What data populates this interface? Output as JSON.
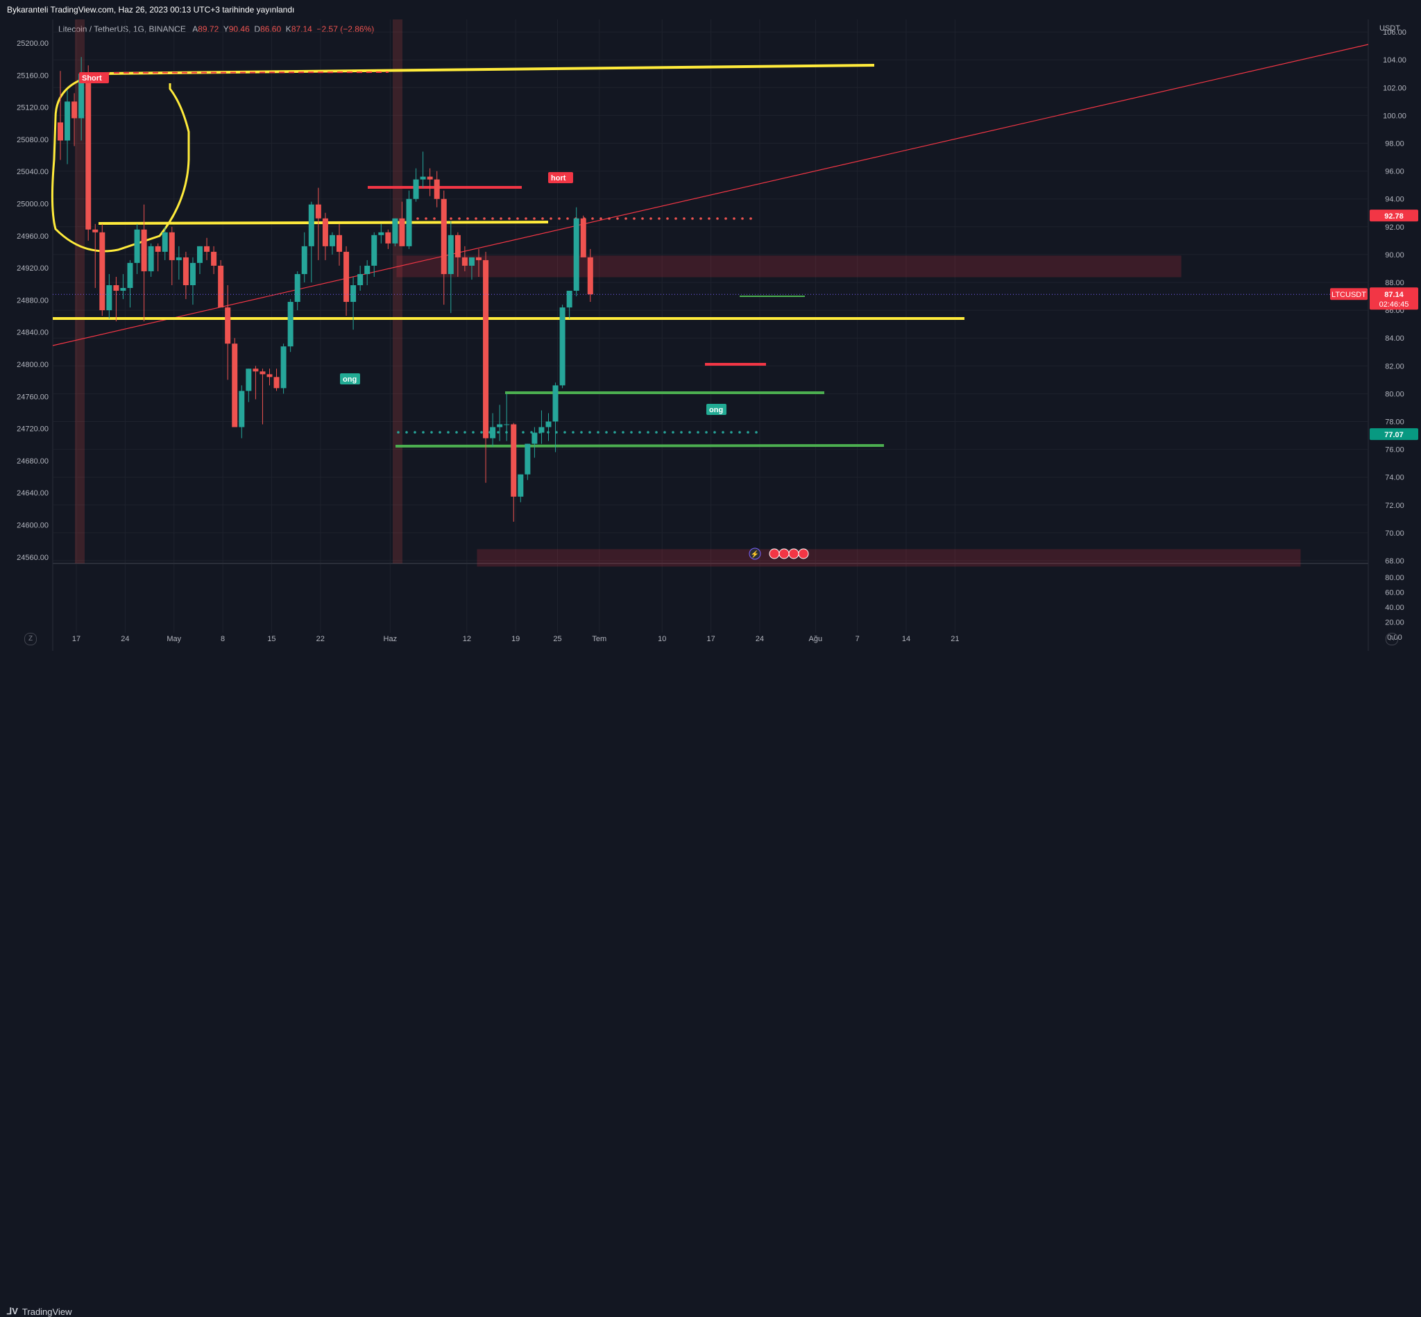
{
  "header": {
    "published": "Bykaranteli TradingView.com, Haz 26, 2023 00:13 UTC+3 tarihinde yayınlandı"
  },
  "symbol": {
    "name": "Litecoin / TetherUS, 1G, BINANCE",
    "o_label": "A",
    "o": "89.72",
    "h_label": "Y",
    "h": "90.46",
    "l_label": "D",
    "l": "86.60",
    "c_label": "K",
    "c": "87.14",
    "change": "−2.57 (−2.86%)"
  },
  "footer": {
    "brand": "TradingView",
    "left_btn": "Z",
    "right_btn": "A"
  },
  "price_tags": {
    "currency": "USDT",
    "red_level": "92.78",
    "ticker": "LTCUSDT",
    "last": "87.14",
    "countdown": "02:46:45",
    "green_level": "77.07"
  },
  "signals": {
    "short1": "Short",
    "short2": "hort",
    "long1": "ong",
    "long2": "ong"
  },
  "colors": {
    "up": "#26a69a",
    "down": "#ef5350",
    "yellow": "#ffeb3b",
    "green_line": "#4caf50",
    "red_line": "#f23645",
    "bg": "#131722",
    "grid": "#2a2e39"
  },
  "chart_data": {
    "type": "candlestick",
    "title": "Litecoin / TetherUS, 1G, BINANCE",
    "right_axis_ticks": [
      "106.00",
      "104.00",
      "102.00",
      "100.00",
      "98.00",
      "96.00",
      "94.00",
      "92.00",
      "90.00",
      "88.00",
      "86.00",
      "84.00",
      "82.00",
      "80.00",
      "78.00",
      "76.00",
      "74.00",
      "72.00",
      "70.00",
      "68.00"
    ],
    "left_axis_ticks": [
      "25200.00",
      "25160.00",
      "25120.00",
      "25080.00",
      "25040.00",
      "25000.00",
      "24960.00",
      "24920.00",
      "24880.00",
      "24840.00",
      "24800.00",
      "24760.00",
      "24720.00",
      "24680.00",
      "24640.00",
      "24600.00",
      "24560.00"
    ],
    "lower_axis_ticks": [
      "80.00",
      "60.00",
      "40.00",
      "20.00",
      "0.00"
    ],
    "x_ticks": [
      {
        "label": "17",
        "day": 1
      },
      {
        "label": "24",
        "day": 8
      },
      {
        "label": "May",
        "day": 15
      },
      {
        "label": "8",
        "day": 22
      },
      {
        "label": "15",
        "day": 29
      },
      {
        "label": "22",
        "day": 36
      },
      {
        "label": "Haz",
        "day": 46
      },
      {
        "label": "12",
        "day": 57
      },
      {
        "label": "19",
        "day": 64
      },
      {
        "label": "25",
        "day": 70
      },
      {
        "label": "Tem",
        "day": 76
      },
      {
        "label": "10",
        "day": 85
      },
      {
        "label": "17",
        "day": 92
      },
      {
        "label": "24",
        "day": 99
      },
      {
        "label": "Ağu",
        "day": 107
      },
      {
        "label": "7",
        "day": 113
      },
      {
        "label": "14",
        "day": 120
      },
      {
        "label": "21",
        "day": 127
      }
    ],
    "candles_ohlc": [
      [
        99.5,
        103.2,
        96.8,
        98.2
      ],
      [
        98.2,
        101.8,
        96.5,
        101.0
      ],
      [
        101.0,
        101.6,
        97.8,
        99.8
      ],
      [
        99.8,
        104.2,
        98.2,
        103.0
      ],
      [
        103.0,
        103.6,
        91.0,
        91.8
      ],
      [
        91.8,
        92.2,
        87.6,
        91.6
      ],
      [
        91.6,
        92.2,
        85.6,
        86.0
      ],
      [
        86.0,
        88.6,
        85.4,
        87.8
      ],
      [
        87.8,
        88.4,
        85.2,
        87.4
      ],
      [
        87.4,
        88.6,
        86.8,
        87.6
      ],
      [
        87.6,
        89.6,
        86.2,
        89.4
      ],
      [
        89.4,
        92.2,
        88.6,
        91.8
      ],
      [
        91.8,
        93.6,
        85.2,
        88.8
      ],
      [
        88.8,
        90.8,
        88.4,
        90.6
      ],
      [
        90.6,
        90.8,
        88.8,
        90.2
      ],
      [
        90.2,
        92.0,
        89.6,
        91.6
      ],
      [
        91.6,
        92.0,
        87.8,
        89.6
      ],
      [
        89.6,
        90.6,
        88.2,
        89.8
      ],
      [
        89.8,
        90.2,
        86.8,
        87.8
      ],
      [
        87.8,
        89.8,
        86.4,
        89.4
      ],
      [
        89.4,
        90.6,
        88.6,
        90.6
      ],
      [
        90.6,
        91.2,
        89.6,
        90.2
      ],
      [
        90.2,
        90.6,
        88.6,
        89.2
      ],
      [
        89.2,
        89.6,
        86.8,
        86.2
      ],
      [
        86.2,
        87.8,
        81.0,
        83.6
      ],
      [
        83.6,
        84.0,
        77.8,
        77.6
      ],
      [
        77.6,
        80.6,
        76.8,
        80.2
      ],
      [
        80.2,
        81.8,
        79.4,
        81.8
      ],
      [
        81.8,
        82.0,
        79.6,
        81.6
      ],
      [
        81.6,
        81.8,
        77.8,
        81.4
      ],
      [
        81.4,
        81.8,
        80.6,
        81.2
      ],
      [
        81.2,
        81.8,
        80.2,
        80.4
      ],
      [
        80.4,
        83.6,
        80.0,
        83.4
      ],
      [
        83.4,
        86.8,
        83.0,
        86.6
      ],
      [
        86.6,
        88.8,
        86.0,
        88.6
      ],
      [
        88.6,
        91.6,
        88.0,
        90.6
      ],
      [
        90.6,
        93.8,
        88.0,
        93.6
      ],
      [
        93.6,
        94.8,
        89.6,
        92.6
      ],
      [
        92.6,
        93.0,
        89.6,
        90.6
      ],
      [
        90.6,
        91.6,
        90.0,
        91.4
      ],
      [
        91.4,
        92.2,
        89.2,
        90.2
      ],
      [
        90.2,
        90.6,
        85.6,
        86.6
      ],
      [
        86.6,
        88.4,
        84.6,
        87.8
      ],
      [
        87.8,
        89.2,
        87.4,
        88.6
      ],
      [
        88.6,
        89.6,
        87.8,
        89.2
      ],
      [
        89.2,
        91.6,
        88.4,
        91.4
      ],
      [
        91.4,
        92.2,
        90.8,
        91.6
      ],
      [
        91.6,
        91.8,
        90.4,
        90.8
      ],
      [
        90.8,
        92.6,
        90.6,
        92.6
      ],
      [
        92.6,
        93.8,
        90.8,
        90.6
      ],
      [
        90.6,
        94.6,
        90.4,
        94.0
      ],
      [
        94.0,
        96.2,
        93.8,
        95.4
      ],
      [
        95.4,
        97.4,
        94.8,
        95.6
      ],
      [
        95.6,
        96.2,
        94.2,
        95.4
      ],
      [
        95.4,
        96.0,
        93.4,
        94.0
      ],
      [
        94.0,
        94.6,
        86.4,
        88.6
      ],
      [
        88.6,
        92.4,
        85.8,
        91.4
      ],
      [
        91.4,
        91.6,
        88.4,
        89.8
      ],
      [
        89.8,
        90.6,
        88.8,
        89.2
      ],
      [
        89.2,
        89.6,
        88.2,
        89.8
      ],
      [
        89.8,
        90.4,
        88.4,
        89.6
      ],
      [
        89.6,
        90.2,
        73.6,
        76.8
      ],
      [
        76.8,
        78.6,
        76.2,
        77.6
      ],
      [
        77.6,
        79.2,
        76.6,
        77.8
      ],
      [
        77.8,
        80.0,
        76.6,
        77.8
      ],
      [
        77.8,
        77.9,
        70.8,
        72.6
      ],
      [
        72.6,
        74.2,
        72.2,
        74.2
      ],
      [
        74.2,
        76.4,
        73.8,
        76.4
      ],
      [
        76.4,
        77.6,
        75.4,
        77.2
      ],
      [
        77.2,
        78.8,
        76.4,
        77.6
      ],
      [
        77.6,
        78.6,
        76.6,
        78.0
      ],
      [
        78.0,
        80.8,
        75.8,
        80.6
      ],
      [
        80.6,
        86.4,
        80.4,
        86.2
      ],
      [
        86.2,
        87.4,
        85.4,
        87.4
      ],
      [
        87.4,
        93.4,
        87.0,
        92.6
      ],
      [
        92.6,
        92.8,
        90.0,
        89.8
      ],
      [
        89.8,
        90.4,
        86.6,
        87.14
      ]
    ],
    "indicators": {
      "short_signals": [
        "Short",
        "hort"
      ],
      "long_signals": [
        "ong",
        "ong"
      ]
    }
  }
}
